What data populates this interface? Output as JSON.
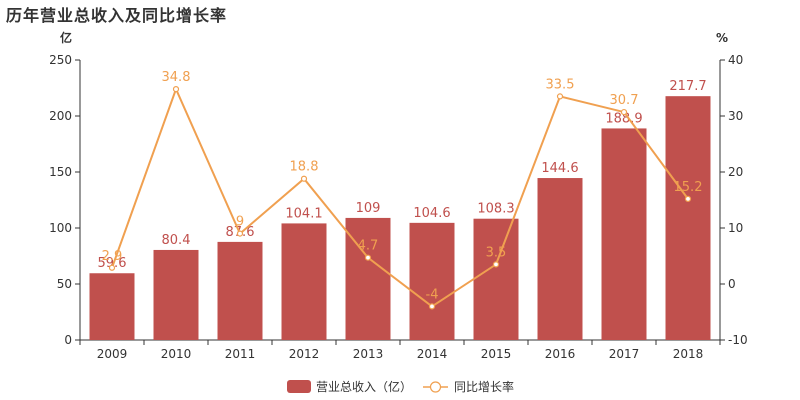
{
  "chart_data": {
    "type": "bar",
    "title": "历年营业总收入及同比增长率",
    "categories": [
      "2009",
      "2010",
      "2011",
      "2012",
      "2013",
      "2014",
      "2015",
      "2016",
      "2017",
      "2018"
    ],
    "series": [
      {
        "name": "营业总收入（亿）",
        "type": "bar",
        "values": [
          59.6,
          80.4,
          87.6,
          104.1,
          109,
          104.6,
          108.3,
          144.6,
          188.9,
          217.7
        ]
      },
      {
        "name": "同比增长率",
        "type": "line",
        "values": [
          2.9,
          34.8,
          9,
          18.8,
          4.7,
          -4,
          3.5,
          33.5,
          30.7,
          15.2
        ]
      }
    ],
    "y_left": {
      "unit": "亿",
      "min": 0,
      "max": 250,
      "ticks": [
        0,
        50,
        100,
        150,
        200,
        250
      ]
    },
    "y_right": {
      "unit": "%",
      "min": -10,
      "max": 40,
      "ticks": [
        -10,
        0,
        10,
        20,
        30,
        40
      ]
    },
    "legend_position": "bottom",
    "colors": {
      "bar": "#c0504d",
      "line": "#f0a050",
      "axis": "#333333"
    }
  }
}
